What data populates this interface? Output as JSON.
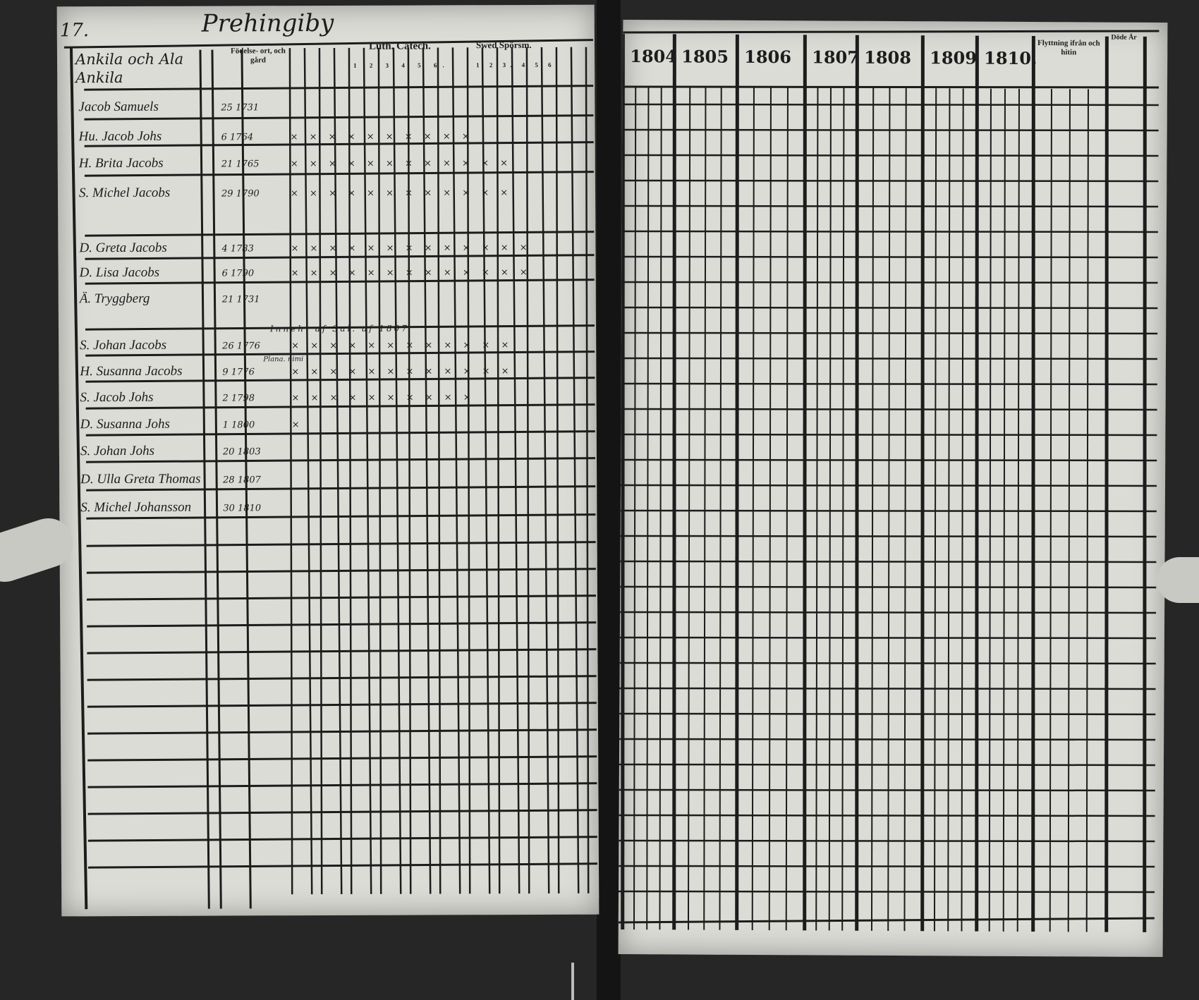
{
  "left_page": {
    "page_number": "17.",
    "title": "Prehingiby",
    "farm_header": "Ankila och Ala Ankila",
    "headers": {
      "birth": "Födelse- ort, och gård",
      "catechism": "Luth. Catech.",
      "catechism_cols": "1 2 3 4 5 6.",
      "questions": "Swed Spörsm.",
      "questions_cols": "1 2 3. 4 5 6."
    },
    "rows": [
      {
        "name": "Jacob Samuels",
        "born": "25 1731",
        "checks": ""
      },
      {
        "name": "Hu. Jacob Johs",
        "born": "6 1764",
        "checks": "× × × × × × × × × ×"
      },
      {
        "name": "H. Brita Jacobs",
        "born": "21 1765",
        "checks": "× × × × × × × × × × × ×"
      },
      {
        "name": "S. Michel Jacobs",
        "born": "29 1790",
        "checks": "× × × × × × × × × × × ×"
      },
      {
        "name": "D. Greta Jacobs",
        "born": "4 1783",
        "checks": "× × × × × × × × × × × × ×"
      },
      {
        "name": "D. Lisa Jacobs",
        "born": "6 1790",
        "checks": "× × × × × × × × × × × × ×"
      },
      {
        "name": "Ä. Tryggberg",
        "born": "21 1731",
        "checks": ""
      },
      {
        "name": "S. Johan Jacobs",
        "born": "26 1776",
        "checks": "× × × × × × × × × × × ×"
      },
      {
        "name": "H. Susanna Jacobs",
        "born": "9 1776",
        "checks": "× × × × × × × × × × × ×"
      },
      {
        "name": "S. Jacob Johs",
        "born": "2 1798",
        "checks": "× × × × × × × × × ×"
      },
      {
        "name": "D. Susanna Johs",
        "born": "1 1800",
        "checks": "×"
      },
      {
        "name": "S. Johan Johs",
        "born": "20 1803",
        "checks": ""
      },
      {
        "name": "D. Ulla Greta Thomas",
        "born": "28 1807",
        "checks": ""
      },
      {
        "name": "S. Michel Johansson",
        "born": "30 1810",
        "checks": ""
      }
    ],
    "notes": [
      "Inneh. af Sal. af 1807",
      "Plana. nimi"
    ]
  },
  "right_page": {
    "years": [
      "1804",
      "1805",
      "1806",
      "1807",
      "1808",
      "1809",
      "1810."
    ],
    "moving_header": "Flyttning ifrån och hitin",
    "death_header": "Döde År"
  },
  "colors": {
    "background": "#262626",
    "paper": "#dcdcd7",
    "ink": "#1c1c1c"
  }
}
